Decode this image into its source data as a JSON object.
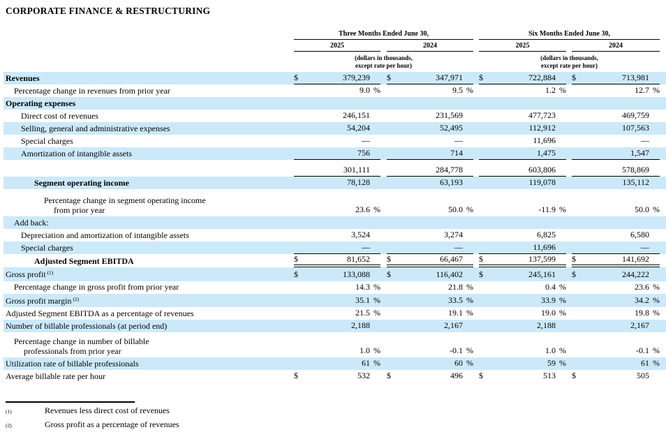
{
  "title": "CORPORATE FINANCE & RESTRUCTURING",
  "colors": {
    "row_highlight": "#CCE9FA",
    "text": "#000000",
    "rule": "#000000"
  },
  "table": {
    "col_groups": [
      {
        "label": "Three Months Ended June 30,",
        "years": [
          "2025",
          "2024"
        ],
        "note_lines": [
          "(dollars in thousands,",
          "except rate per hour)"
        ]
      },
      {
        "label": "Six Months Ended June 30,",
        "years": [
          "2025",
          "2024"
        ],
        "note_lines": [
          "(dollars in thousands,",
          "except rate per hour)"
        ]
      }
    ],
    "rows": [
      {
        "label": "Revenues",
        "bold": true,
        "indent": 0,
        "shaded": true,
        "sym": "$",
        "values": [
          "379,239",
          "347,971",
          "722,884",
          "713,981"
        ],
        "border": "single"
      },
      {
        "label": "Percentage change in revenues from prior year",
        "indent": 1,
        "values": [
          "9.0",
          "9.5",
          "1.2",
          "12.7"
        ],
        "unit": "%"
      },
      {
        "label": "Operating expenses",
        "bold": true,
        "indent": 0,
        "shaded": true,
        "values": null
      },
      {
        "label": "Direct cost of revenues",
        "indent": 2,
        "values": [
          "246,151",
          "231,569",
          "477,723",
          "469,759"
        ]
      },
      {
        "label": "Selling, general and administrative expenses",
        "indent": 2,
        "shaded": true,
        "values": [
          "54,204",
          "52,495",
          "112,912",
          "107,563"
        ]
      },
      {
        "label": "Special charges",
        "indent": 2,
        "values": [
          "—",
          "—",
          "11,696",
          "—"
        ]
      },
      {
        "label": "Amortization of intangible assets",
        "indent": 2,
        "shaded": true,
        "values": [
          "756",
          "714",
          "1,475",
          "1,547"
        ],
        "border": "single"
      },
      {
        "label": "",
        "indent": 0,
        "spacer_top": true,
        "values": [
          "301,111",
          "284,778",
          "603,806",
          "578,869"
        ],
        "border": "single"
      },
      {
        "label": "Segment operating income",
        "bold": true,
        "indent": 3,
        "shaded": true,
        "values": [
          "78,128",
          "63,193",
          "119,078",
          "135,112"
        ]
      },
      {
        "label_lines": [
          "Percentage change in segment operating income",
          "from prior year"
        ],
        "indent": 4,
        "tall": true,
        "values": [
          "23.6",
          "50.0",
          "-11.9",
          "50.0"
        ],
        "unit": "%"
      },
      {
        "label": "Add back:",
        "indent": 1,
        "shaded": true,
        "values": null
      },
      {
        "label": "Depreciation and amortization of intangible assets",
        "indent": 2,
        "values": [
          "3,524",
          "3,274",
          "6,825",
          "6,580"
        ]
      },
      {
        "label": "Special charges",
        "indent": 2,
        "shaded": true,
        "values": [
          "—",
          "—",
          "11,696",
          "—"
        ],
        "border": "single"
      },
      {
        "label": "Adjusted Segment EBITDA",
        "bold": true,
        "indent": 3,
        "sym": "$",
        "values": [
          "81,652",
          "66,467",
          "137,599",
          "141,692"
        ],
        "border": "double"
      },
      {
        "label": "Gross profit",
        "sup": "(1)",
        "indent": 0,
        "shaded": true,
        "sym": "$",
        "values": [
          "133,088",
          "116,402",
          "245,161",
          "244,222"
        ]
      },
      {
        "label": "Percentage change in gross profit from prior year",
        "indent": 1,
        "values": [
          "14.3",
          "21.8",
          "0.4",
          "23.6"
        ],
        "unit": "%"
      },
      {
        "label": "Gross profit margin",
        "sup": "(2)",
        "indent": 0,
        "shaded": true,
        "values": [
          "35.1",
          "33.5",
          "33.9",
          "34.2"
        ],
        "unit": "%"
      },
      {
        "label": "Adjusted Segment EBITDA as a percentage of revenues",
        "indent": 0,
        "values": [
          "21.5",
          "19.1",
          "19.0",
          "19.8"
        ],
        "unit": "%"
      },
      {
        "label": "Number of billable professionals (at period end)",
        "indent": 0,
        "shaded": true,
        "values": [
          "2,188",
          "2,167",
          "2,188",
          "2,167"
        ]
      },
      {
        "label_lines": [
          "Percentage change in number of billable",
          "professionals from prior year"
        ],
        "indent": 1,
        "tall2": true,
        "values": [
          "1.0",
          "-0.1",
          "1.0",
          "-0.1"
        ],
        "unit": "%"
      },
      {
        "label": "Utilization rate of billable professionals",
        "indent": 0,
        "shaded": true,
        "values": [
          "61",
          "60",
          "59",
          "61"
        ],
        "unit": "%"
      },
      {
        "label": "Average billable rate per hour",
        "indent": 0,
        "sym": "$",
        "values": [
          "532",
          "496",
          "513",
          "505"
        ]
      }
    ]
  },
  "footnotes": [
    {
      "marker": "(1)",
      "text": "Revenues less direct cost of revenues"
    },
    {
      "marker": "(2)",
      "text": "Gross profit as a percentage of revenues"
    }
  ]
}
